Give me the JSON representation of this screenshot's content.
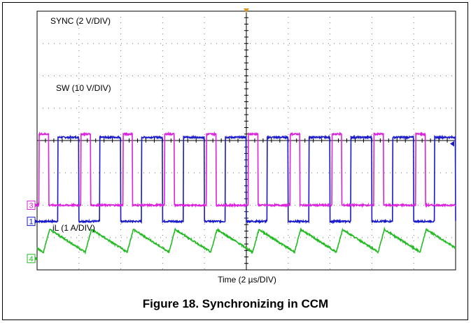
{
  "figure": {
    "caption": "Figure 18. Synchronizing in CCM"
  },
  "chart_data": {
    "type": "line",
    "title": "",
    "xlabel": "Time (2 µs/DIV)",
    "ylabel": "",
    "x_divisions": 10,
    "y_divisions": 8,
    "grid": true,
    "channels": [
      {
        "marker": "1",
        "name": "SYNC",
        "scale_label": "SYNC (2 V/DIV)",
        "color": "#1a1acc",
        "waveform": "square",
        "period_div": 1.0,
        "high_start_div": 0.5,
        "high_duration_div": 0.5,
        "low_level_div": 1.5,
        "high_level_div": 4.1
      },
      {
        "marker": "",
        "name": "SW",
        "scale_label": "SW (10 V/DIV)",
        "color": "#dd22dd",
        "waveform": "pulse",
        "period_div": 1.0,
        "high_start_div": 0.05,
        "high_duration_div": 0.23,
        "low_level_div": 2.0,
        "high_level_div": 4.2
      },
      {
        "marker": "3",
        "name": "",
        "scale_label": "",
        "color": "#dd22dd",
        "waveform": "marker-only"
      },
      {
        "marker": "4",
        "name": "iL",
        "scale_label": "iL (1 A/DIV)",
        "color": "#22bb22",
        "waveform": "triangle",
        "period_div": 1.0,
        "peak_offset_div": 0.3,
        "min_level_div": 0.55,
        "max_level_div": 1.25
      }
    ]
  }
}
